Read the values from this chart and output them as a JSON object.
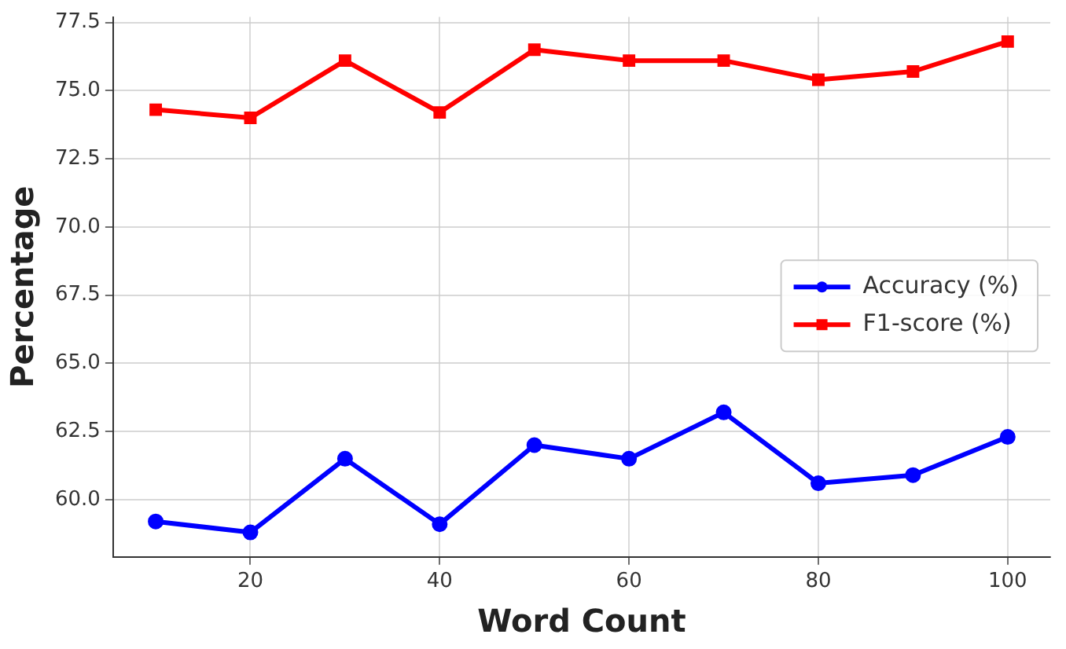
{
  "chart_data": {
    "type": "line",
    "xlabel": "Word Count",
    "ylabel": "Percentage",
    "x": [
      10,
      20,
      30,
      40,
      50,
      60,
      70,
      80,
      90,
      100
    ],
    "series": [
      {
        "name": "Accuracy (%)",
        "color": "#0000ff",
        "marker": "circle",
        "values": [
          59.2,
          58.8,
          61.5,
          59.1,
          62.0,
          61.5,
          63.2,
          60.6,
          60.9,
          62.3
        ]
      },
      {
        "name": "F1-score (%)",
        "color": "#ff0000",
        "marker": "square",
        "values": [
          74.3,
          74.0,
          76.1,
          74.2,
          76.5,
          76.1,
          76.1,
          75.4,
          75.7,
          76.8
        ]
      }
    ],
    "xlim": [
      5.5,
      104.5
    ],
    "xticks": [
      20,
      40,
      60,
      80,
      100
    ],
    "ylim": [
      57.9,
      77.7
    ],
    "yticks": [
      {
        "value": 60,
        "label": "60.0"
      },
      {
        "value": 62.5,
        "label": "62.5"
      },
      {
        "value": 65,
        "label": "65.0"
      },
      {
        "value": 67.5,
        "label": "67.5"
      },
      {
        "value": 70,
        "label": "70.0"
      },
      {
        "value": 72.5,
        "label": "72.5"
      },
      {
        "value": 75,
        "label": "75.0"
      },
      {
        "value": 77.5,
        "label": "77.5"
      }
    ],
    "grid": true,
    "legend": "right",
    "line_style": "solid"
  }
}
